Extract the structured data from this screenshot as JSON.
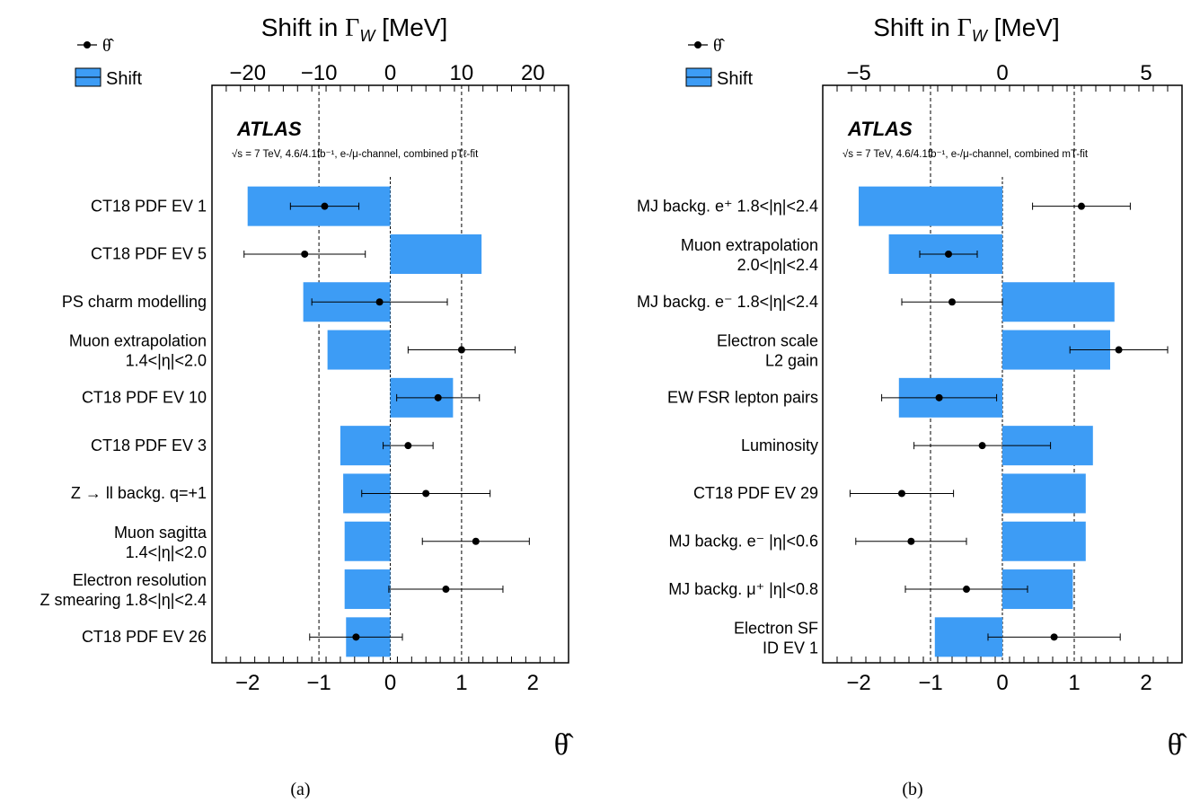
{
  "chart_data": [
    {
      "panel_label": "(a)",
      "type": "bar",
      "orientation": "horizontal",
      "top_axis": {
        "label_prefix": "Shift in ",
        "label_symbol": "Γ",
        "label_sub": "W",
        "label_unit": " [MeV]",
        "lim": [
          -25,
          25
        ],
        "major_ticks": [
          -20,
          -10,
          0,
          10,
          20
        ],
        "minor_step": 2
      },
      "bottom_axis": {
        "label": "θ̂",
        "lim": [
          -2.5,
          2.5
        ],
        "major_ticks": [
          -2,
          -1,
          0,
          1,
          2
        ],
        "minor_step": 0.2
      },
      "reference_lines": [
        -1,
        1
      ],
      "experiment": "ATLAS",
      "annotation": "√s = 7 TeV, 4.6/4.1fb⁻¹, e-/μ-channel, combined pTℓ-fit",
      "legend": {
        "position": "top-left",
        "point_label": "θ̂",
        "bar_label": "Shift"
      },
      "categories": [
        [
          "CT18 PDF EV 1"
        ],
        [
          "CT18 PDF EV 5"
        ],
        [
          "PS charm modelling"
        ],
        [
          "Muon extrapolation",
          "1.4<|η|<2.0"
        ],
        [
          "CT18 PDF EV 10"
        ],
        [
          "CT18 PDF EV 3"
        ],
        [
          "Z → ll backg. q=+1"
        ],
        [
          "Muon sagitta",
          "1.4<|η|<2.0"
        ],
        [
          "Electron resolution",
          "Z smearing 1.8<|η|<2.4"
        ],
        [
          "CT18 PDF EV 26"
        ]
      ],
      "shift_values": [
        -20,
        12.8,
        -12.2,
        -8.8,
        8.8,
        -7.0,
        -6.6,
        -6.4,
        -6.4,
        -6.2
      ],
      "theta_values": [
        -0.92,
        -1.2,
        -0.15,
        1.0,
        0.67,
        0.25,
        0.5,
        1.2,
        0.78,
        -0.48
      ],
      "theta_err_low": [
        0.48,
        0.85,
        0.95,
        0.75,
        0.58,
        0.35,
        0.9,
        0.75,
        0.8,
        0.65
      ],
      "theta_err_high": [
        0.48,
        0.85,
        0.95,
        0.75,
        0.58,
        0.35,
        0.9,
        0.75,
        0.8,
        0.65
      ]
    },
    {
      "panel_label": "(b)",
      "type": "bar",
      "orientation": "horizontal",
      "top_axis": {
        "label_prefix": "Shift in ",
        "label_symbol": "Γ",
        "label_sub": "W",
        "label_unit": " [MeV]",
        "lim": [
          -6.25,
          6.25
        ],
        "major_ticks": [
          -5,
          0,
          5
        ],
        "minor_step": 0.5
      },
      "bottom_axis": {
        "label": "θ̂",
        "lim": [
          -2.5,
          2.5
        ],
        "major_ticks": [
          -2,
          -1,
          0,
          1,
          2
        ],
        "minor_step": 0.2
      },
      "reference_lines": [
        -1,
        1
      ],
      "experiment": "ATLAS",
      "annotation": "√s = 7 TeV, 4.6/4.1fb⁻¹, e-/μ-channel, combined mT-fit",
      "legend": {
        "position": "top-left",
        "point_label": "θ̂",
        "bar_label": "Shift"
      },
      "categories": [
        [
          "MJ backg. e⁺ 1.8<|η|<2.4"
        ],
        [
          "Muon extrapolation",
          "2.0<|η|<2.4"
        ],
        [
          "MJ backg. e⁻ 1.8<|η|<2.4"
        ],
        [
          "Electron scale",
          "L2 gain"
        ],
        [
          "EW FSR lepton pairs"
        ],
        [
          "Luminosity"
        ],
        [
          "CT18 PDF EV 29"
        ],
        [
          "MJ backg. e⁻ |η|<0.6"
        ],
        [
          "MJ backg. μ⁺ |η|<0.8"
        ],
        [
          "Electron SF",
          "ID EV 1"
        ]
      ],
      "shift_values": [
        -5.0,
        -3.95,
        3.9,
        3.75,
        -3.6,
        3.15,
        2.9,
        2.9,
        2.45,
        -2.35
      ],
      "theta_values": [
        1.1,
        -0.75,
        -0.7,
        1.62,
        -0.88,
        -0.28,
        -1.4,
        -1.27,
        -0.5,
        0.72
      ],
      "theta_err_low": [
        0.68,
        0.4,
        0.7,
        0.68,
        0.8,
        0.95,
        0.72,
        0.77,
        0.85,
        0.92
      ],
      "theta_err_high": [
        0.68,
        0.4,
        0.7,
        0.68,
        0.8,
        0.95,
        0.72,
        0.77,
        0.85,
        0.92
      ]
    }
  ]
}
